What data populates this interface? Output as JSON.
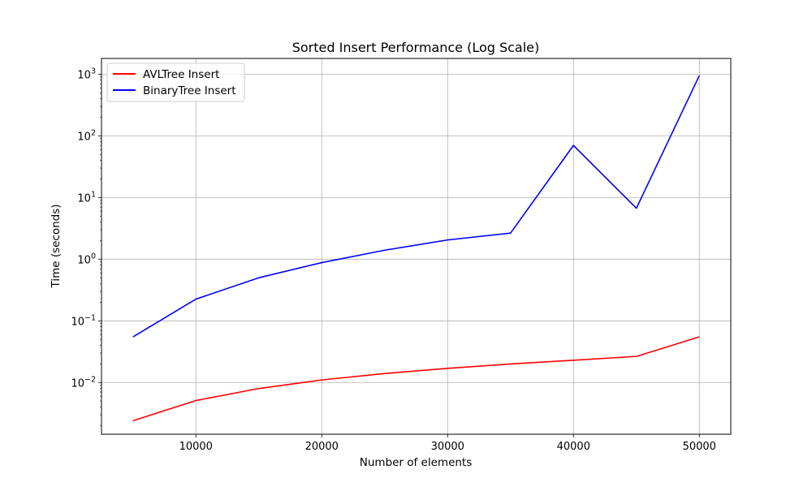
{
  "chart_data": {
    "type": "line",
    "title": "Sorted Insert Performance (Log Scale)",
    "xlabel": "Number of elements",
    "ylabel": "Time (seconds)",
    "x": [
      5000,
      10000,
      15000,
      20000,
      25000,
      30000,
      35000,
      40000,
      45000,
      50000
    ],
    "xlim": [
      2500,
      52500
    ],
    "ylim": [
      0.00145,
      1800
    ],
    "yscale": "log",
    "grid": true,
    "legend_position": "top-left",
    "x_ticks": [
      {
        "value": 10000,
        "label": "10000"
      },
      {
        "value": 20000,
        "label": "20000"
      },
      {
        "value": 30000,
        "label": "30000"
      },
      {
        "value": 40000,
        "label": "40000"
      },
      {
        "value": 50000,
        "label": "50000"
      }
    ],
    "y_ticks": [
      {
        "value": 0.01,
        "base": "10",
        "exp": "−2"
      },
      {
        "value": 0.1,
        "base": "10",
        "exp": "−1"
      },
      {
        "value": 1,
        "base": "10",
        "exp": "0"
      },
      {
        "value": 10,
        "base": "10",
        "exp": "1"
      },
      {
        "value": 100,
        "base": "10",
        "exp": "2"
      },
      {
        "value": 1000,
        "base": "10",
        "exp": "3"
      }
    ],
    "series": [
      {
        "name": "AVLTree Insert",
        "color": "#ff0000",
        "values": [
          0.0024,
          0.0051,
          0.008,
          0.011,
          0.014,
          0.017,
          0.02,
          0.023,
          0.0265,
          0.055
        ]
      },
      {
        "name": "BinaryTree Insert",
        "color": "#0000ff",
        "values": [
          0.055,
          0.225,
          0.5,
          0.88,
          1.4,
          2.05,
          2.65,
          70,
          6.7,
          950
        ]
      }
    ]
  }
}
